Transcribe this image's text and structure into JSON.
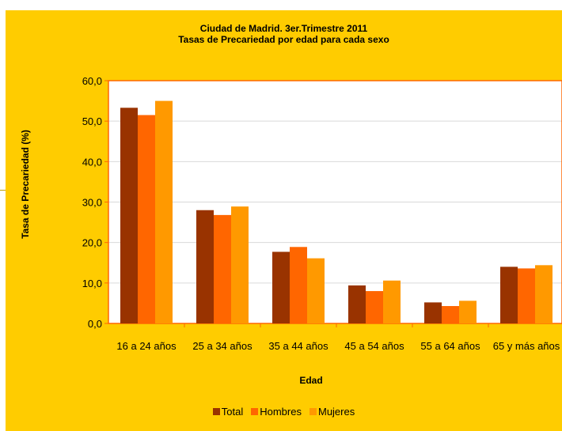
{
  "chart_data": {
    "type": "bar",
    "title": "Ciudad de Madrid. 3er.Trimestre 2011",
    "subtitle": "Tasas de Precariedad por edad para cada sexo",
    "xlabel": "Edad",
    "ylabel": "Tasa de Precariedad (%)",
    "ylim": [
      0,
      60
    ],
    "yticks": [
      "0,0",
      "10,0",
      "20,0",
      "30,0",
      "40,0",
      "50,0",
      "60,0"
    ],
    "grid": true,
    "legend_position": "bottom",
    "categories": [
      "16 a 24 años",
      "25 a 34 años",
      "35 a 44 años",
      "45 a 54 años",
      "55 a 64 años",
      "65 y más años"
    ],
    "series": [
      {
        "name": "Total",
        "color": "#993300",
        "values": [
          53.3,
          28.0,
          17.7,
          9.4,
          5.2,
          14.0
        ]
      },
      {
        "name": "Hombres",
        "color": "#ff6600",
        "values": [
          51.5,
          26.8,
          18.9,
          8.0,
          4.3,
          13.6
        ]
      },
      {
        "name": "Mujeres",
        "color": "#ff9900",
        "values": [
          55.0,
          28.9,
          16.1,
          10.6,
          5.6,
          14.4
        ]
      }
    ],
    "colors": {
      "chart_background": "#ffcc00",
      "plot_background": "#ffffff",
      "plot_border": "#ff6600",
      "gridline": "#d9d9d9"
    }
  }
}
